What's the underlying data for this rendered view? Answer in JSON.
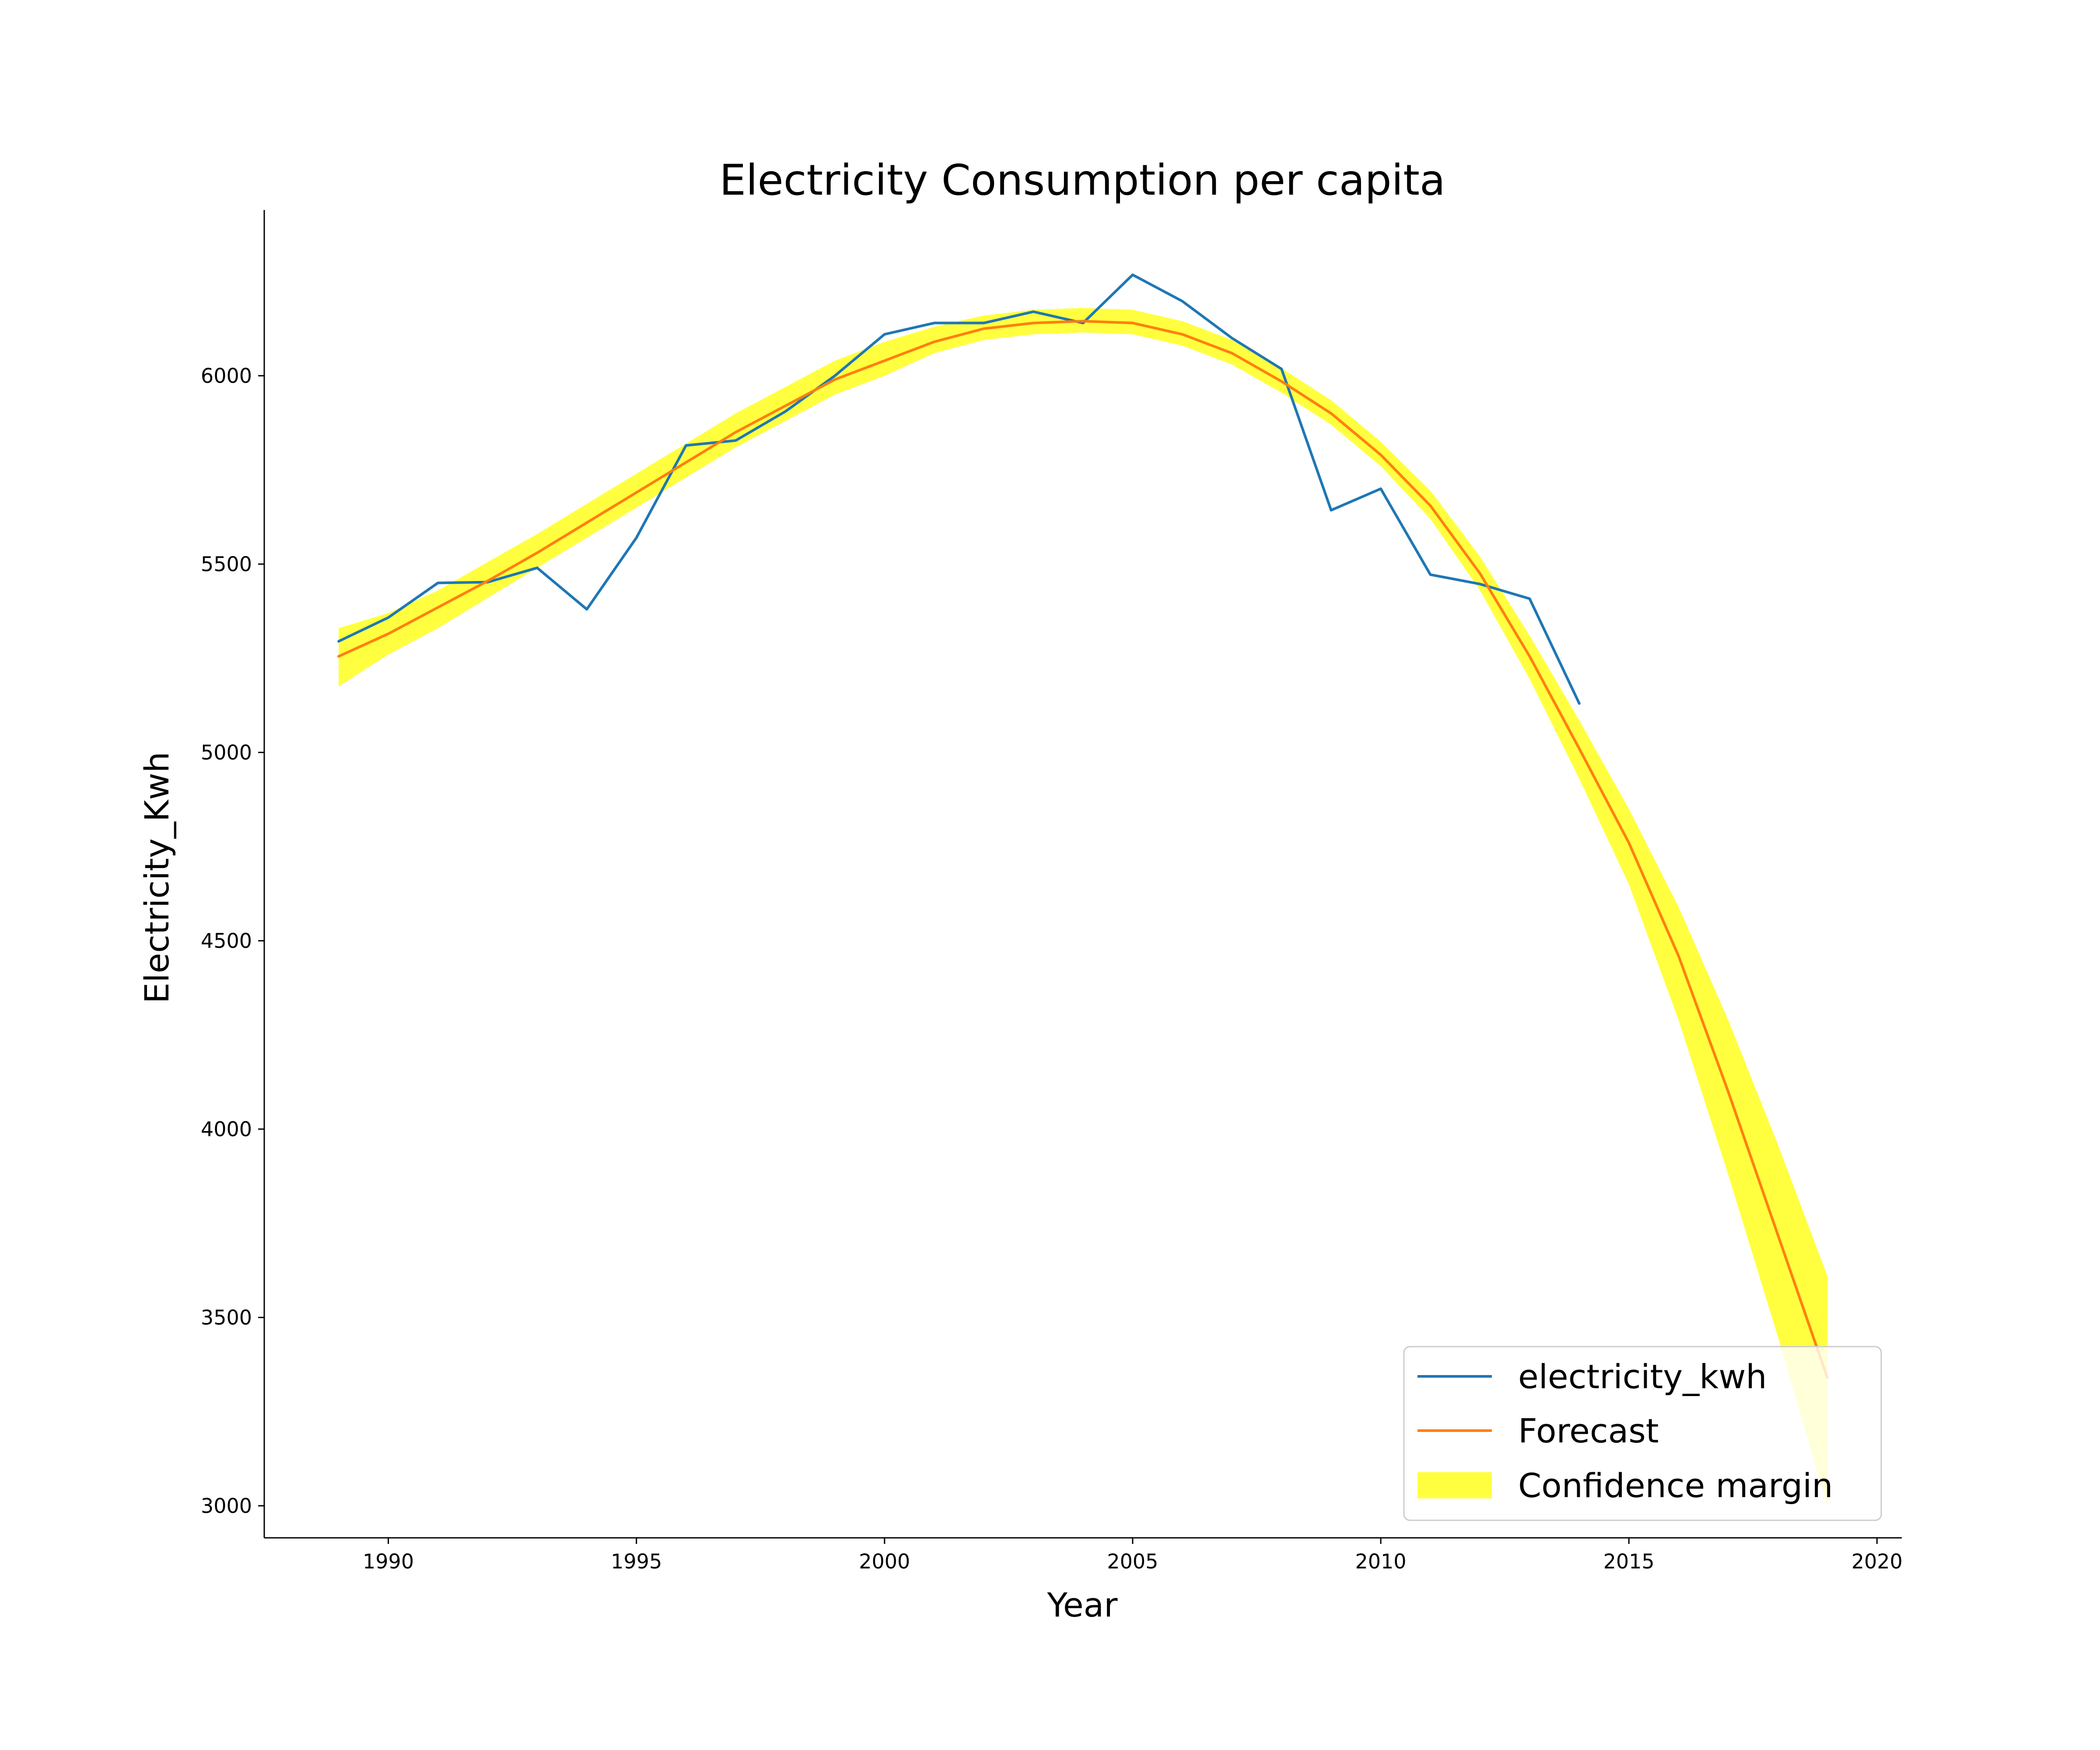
{
  "chart_data": {
    "type": "line",
    "title": "Electricity Consumption per capita",
    "xlabel": "Year",
    "ylabel": "Electricity_Kwh",
    "xlim": [
      1987.5,
      2020.5
    ],
    "ylim": [
      2915,
      6440
    ],
    "xticks": [
      1990,
      1995,
      2000,
      2005,
      2010,
      2015,
      2020
    ],
    "yticks": [
      3000,
      3500,
      4000,
      4500,
      5000,
      5500,
      6000
    ],
    "grid": false,
    "legend_position": "lower right",
    "series": [
      {
        "name": "electricity_kwh",
        "kind": "line",
        "color": "#1f77b4",
        "x": [
          1989,
          1990,
          1991,
          1992,
          1993,
          1994,
          1995,
          1996,
          1997,
          1998,
          1999,
          2000,
          2001,
          2002,
          2003,
          2004,
          2005,
          2006,
          2007,
          2008,
          2009,
          2010,
          2011,
          2012,
          2013,
          2014
        ],
        "y": [
          5295,
          5358,
          5450,
          5452,
          5490,
          5380,
          5570,
          5815,
          5828,
          5905,
          6000,
          6110,
          6140,
          6140,
          6170,
          6140,
          6268,
          6198,
          6100,
          6018,
          5643,
          5700,
          5472,
          5447,
          5408,
          5130
        ]
      },
      {
        "name": "Forecast",
        "kind": "line",
        "color": "#ff7f0e",
        "x": [
          1989,
          1990,
          1991,
          1992,
          1993,
          1994,
          1995,
          1996,
          1997,
          1998,
          1999,
          2000,
          2001,
          2002,
          2003,
          2004,
          2005,
          2006,
          2007,
          2008,
          2009,
          2010,
          2011,
          2012,
          2013,
          2014,
          2015,
          2016,
          2017,
          2018,
          2019
        ],
        "y": [
          5255,
          5315,
          5385,
          5455,
          5530,
          5610,
          5690,
          5770,
          5850,
          5920,
          5990,
          6040,
          6090,
          6125,
          6140,
          6145,
          6140,
          6110,
          6060,
          5985,
          5900,
          5790,
          5655,
          5475,
          5255,
          5010,
          4760,
          4460,
          4100,
          3720,
          3340
        ]
      },
      {
        "name": "Confidence margin",
        "kind": "band",
        "color": "#ffff00",
        "x": [
          1989,
          1990,
          1991,
          1992,
          1993,
          1994,
          1995,
          1996,
          1997,
          1998,
          1999,
          2000,
          2001,
          2002,
          2003,
          2004,
          2005,
          2006,
          2007,
          2008,
          2009,
          2010,
          2011,
          2012,
          2013,
          2014,
          2015,
          2016,
          2017,
          2018,
          2019
        ],
        "lower": [
          5175,
          5260,
          5330,
          5410,
          5490,
          5570,
          5650,
          5730,
          5810,
          5880,
          5950,
          6000,
          6060,
          6095,
          6110,
          6115,
          6110,
          6080,
          6030,
          5955,
          5870,
          5760,
          5620,
          5430,
          5195,
          4930,
          4650,
          4290,
          3880,
          3450,
          3000
        ],
        "upper": [
          5330,
          5370,
          5430,
          5505,
          5580,
          5660,
          5740,
          5820,
          5900,
          5970,
          6040,
          6090,
          6130,
          6160,
          6175,
          6180,
          6175,
          6145,
          6095,
          6020,
          5935,
          5825,
          5695,
          5520,
          5310,
          5085,
          4850,
          4590,
          4290,
          3960,
          3610
        ]
      }
    ]
  }
}
